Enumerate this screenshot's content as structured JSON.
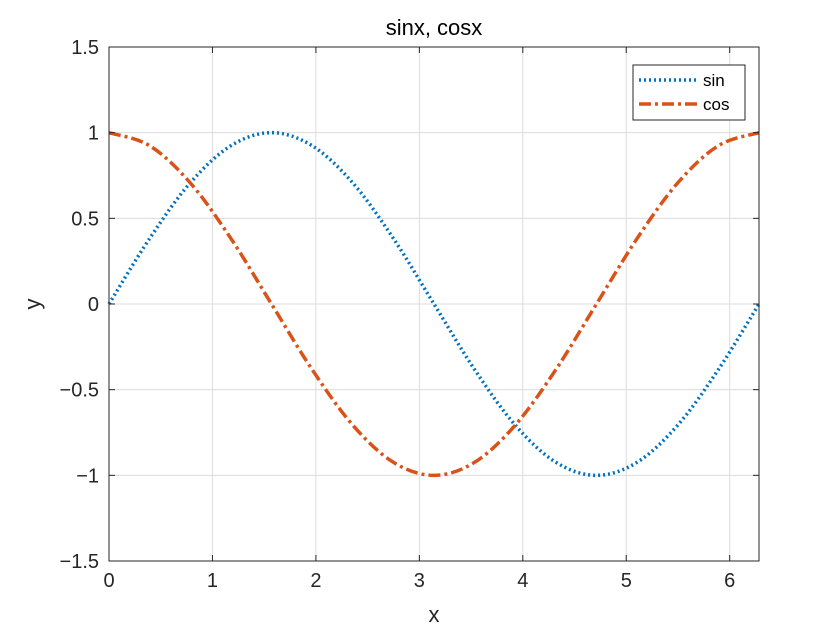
{
  "chart_data": {
    "type": "line",
    "title": "sinx, cosx",
    "xlabel": "x",
    "ylabel": "y",
    "xlim": [
      0,
      6.2832
    ],
    "ylim": [
      -1.5,
      1.5
    ],
    "xticks": [
      0,
      1,
      2,
      3,
      4,
      5,
      6
    ],
    "yticks": [
      -1.5,
      -1,
      -0.5,
      0,
      0.5,
      1,
      1.5
    ],
    "xtick_labels": [
      "0",
      "1",
      "2",
      "3",
      "4",
      "5",
      "6"
    ],
    "ytick_labels": [
      "−1.5",
      "−1",
      "−0.5",
      "0",
      "0.5",
      "1",
      "1.5"
    ],
    "grid": true,
    "legend_position": "top-right",
    "x": [
      0,
      0.3927,
      0.7854,
      1.1781,
      1.5708,
      1.9635,
      2.3562,
      2.7489,
      3.1416,
      3.5343,
      3.927,
      4.3197,
      4.7124,
      5.1051,
      5.4978,
      5.8905,
      6.2832
    ],
    "series": [
      {
        "name": "sin",
        "color": "#0072BD",
        "line_style": "dotted",
        "values": [
          0,
          0.3827,
          0.7071,
          0.9239,
          1,
          0.9239,
          0.7071,
          0.3827,
          0,
          -0.3827,
          -0.7071,
          -0.9239,
          -1,
          -0.9239,
          -0.7071,
          -0.3827,
          0
        ]
      },
      {
        "name": "cos",
        "color": "#D95319",
        "line_style": "dash-dot",
        "values": [
          1,
          0.9239,
          0.7071,
          0.3827,
          0,
          -0.3827,
          -0.7071,
          -0.9239,
          -1,
          -0.9239,
          -0.7071,
          -0.3827,
          0,
          0.3827,
          0.7071,
          0.9239,
          1
        ]
      }
    ]
  }
}
